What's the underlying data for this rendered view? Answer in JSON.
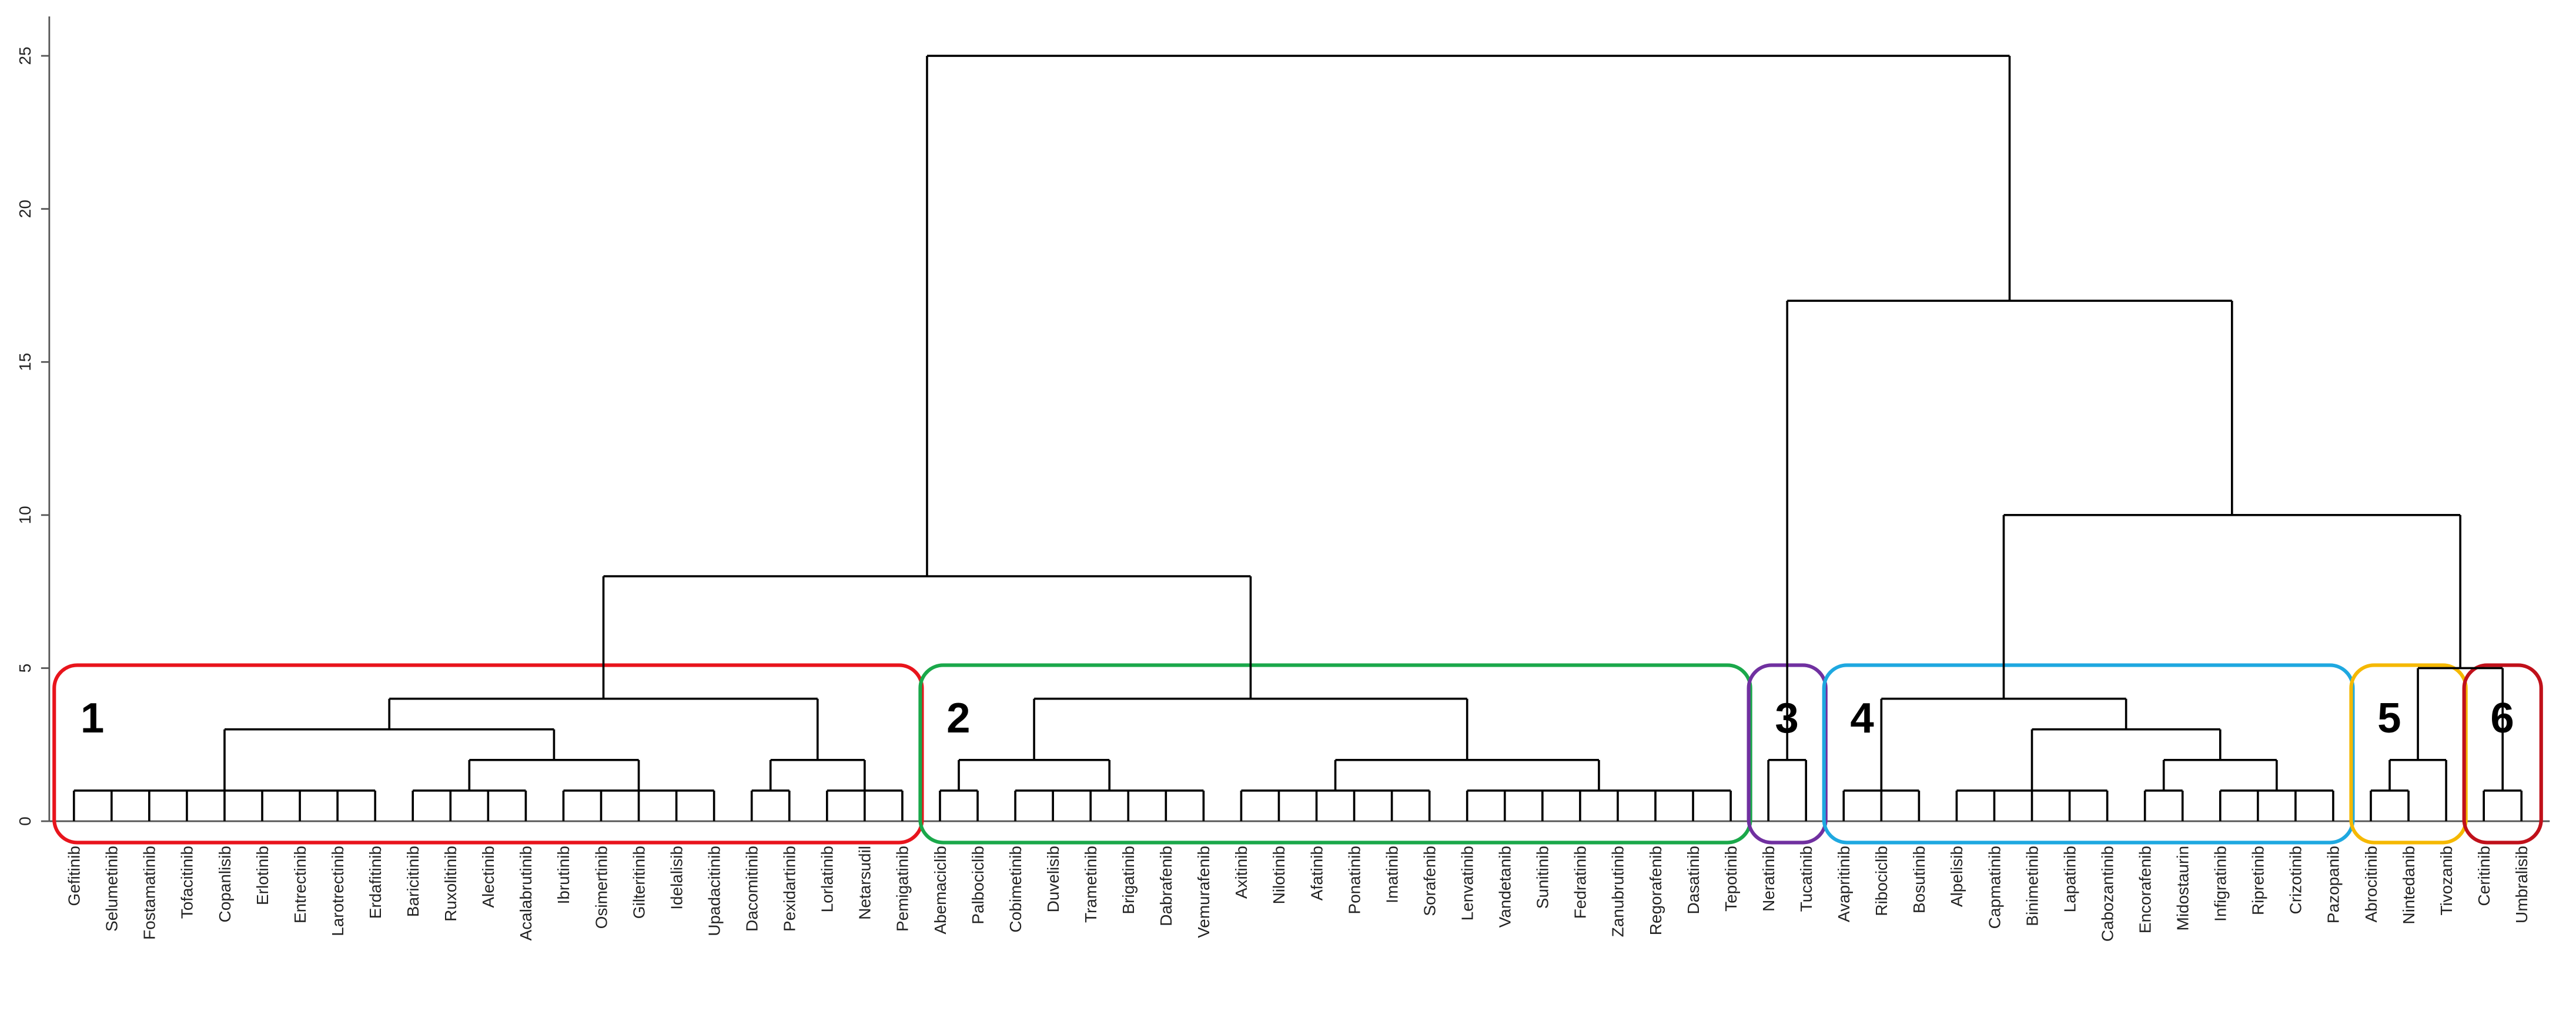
{
  "chart_data": {
    "type": "dendrogram",
    "ylim": [
      0,
      25
    ],
    "yticks": [
      0,
      5,
      10,
      15,
      20,
      25
    ],
    "line_color": "#000000",
    "leaves": [
      "Gefitinib",
      "Selumetinib",
      "Fostamatinib",
      "Tofacitinib",
      "Copanlisib",
      "Erlotinib",
      "Entrectinib",
      "Larotrectinib",
      "Erdafitinib",
      "Baricitinib",
      "Ruxolitinib",
      "Alectinib",
      "Acalabrutinib",
      "Ibrutinib",
      "Osimertinib",
      "Gilteritinib",
      "Idelalisib",
      "Upadacitinib",
      "Dacomitinib",
      "Pexidartinib",
      "Lorlatinib",
      "Netarsudil",
      "Pemigatinib",
      "Abemaciclib",
      "Palbociclib",
      "Cobimetinib",
      "Duvelisib",
      "Trametinib",
      "Brigatinib",
      "Dabrafenib",
      "Vemurafenib",
      "Axitinib",
      "Nilotinib",
      "Afatinib",
      "Ponatinib",
      "Imatinib",
      "Sorafenib",
      "Lenvatinib",
      "Vandetanib",
      "Sunitinib",
      "Fedratinib",
      "Zanubrutinib",
      "Regorafenib",
      "Dasatinib",
      "Tepotinib",
      "Neratinib",
      "Tucatinib",
      "Avapritinib",
      "Ribociclib",
      "Bosutinib",
      "Alpelisib",
      "Capmatinib",
      "Binimetinib",
      "Lapatinib",
      "Cabozantinib",
      "Encorafenib",
      "Midostaurin",
      "Infigratinib",
      "Ripretinib",
      "Crizotinib",
      "Pazopanib",
      "Abrocitinib",
      "Nintedanib",
      "Tivozanib",
      "Ceritinib",
      "Umbralisib"
    ],
    "merges": [
      {
        "children": [
          0,
          1,
          2,
          3,
          4,
          5,
          6,
          7,
          8
        ],
        "height": 1
      },
      {
        "children": [
          9,
          10,
          11,
          12
        ],
        "height": 1
      },
      {
        "children": [
          13,
          14,
          15,
          16,
          17
        ],
        "height": 1
      },
      {
        "children": [
          67,
          68
        ],
        "height": 2
      },
      {
        "children": [
          66,
          69
        ],
        "height": 3
      },
      {
        "children": [
          18,
          19
        ],
        "height": 1
      },
      {
        "children": [
          20,
          21,
          22
        ],
        "height": 1
      },
      {
        "children": [
          71,
          72
        ],
        "height": 2
      },
      {
        "children": [
          70,
          73
        ],
        "height": 4
      },
      {
        "children": [
          23,
          24
        ],
        "height": 1
      },
      {
        "children": [
          25,
          26,
          27,
          28,
          29,
          30
        ],
        "height": 1
      },
      {
        "children": [
          75,
          76
        ],
        "height": 2
      },
      {
        "children": [
          31,
          32,
          33,
          34,
          35,
          36
        ],
        "height": 1
      },
      {
        "children": [
          37,
          38,
          39,
          40,
          41,
          42,
          43,
          44
        ],
        "height": 1
      },
      {
        "children": [
          78,
          79
        ],
        "height": 2
      },
      {
        "children": [
          77,
          80
        ],
        "height": 4
      },
      {
        "children": [
          74,
          81
        ],
        "height": 8
      },
      {
        "children": [
          45,
          46
        ],
        "height": 2
      },
      {
        "children": [
          47,
          48,
          49
        ],
        "height": 1
      },
      {
        "children": [
          50,
          51,
          52,
          53,
          54
        ],
        "height": 1
      },
      {
        "children": [
          55,
          56
        ],
        "height": 1
      },
      {
        "children": [
          57,
          58,
          59,
          60
        ],
        "height": 1
      },
      {
        "children": [
          86,
          87
        ],
        "height": 2
      },
      {
        "children": [
          85,
          88
        ],
        "height": 3
      },
      {
        "children": [
          84,
          89
        ],
        "height": 4
      },
      {
        "children": [
          61,
          62
        ],
        "height": 1
      },
      {
        "children": [
          91,
          63
        ],
        "height": 2
      },
      {
        "children": [
          64,
          65
        ],
        "height": 1
      },
      {
        "children": [
          92,
          93
        ],
        "height": 5
      },
      {
        "children": [
          90,
          94
        ],
        "height": 10
      },
      {
        "children": [
          83,
          95
        ],
        "height": 17
      },
      {
        "children": [
          82,
          96
        ],
        "height": 25
      }
    ],
    "clusters": [
      {
        "label": "1",
        "color": "#e8141c",
        "leaves": [
          0,
          22
        ]
      },
      {
        "label": "2",
        "color": "#1aa84a",
        "leaves": [
          23,
          44
        ]
      },
      {
        "label": "3",
        "color": "#7030a0",
        "leaves": [
          45,
          46
        ]
      },
      {
        "label": "4",
        "color": "#1ea8e0",
        "leaves": [
          47,
          60
        ]
      },
      {
        "label": "5",
        "color": "#f5b800",
        "leaves": [
          61,
          63
        ]
      },
      {
        "label": "6",
        "color": "#c0101a",
        "leaves": [
          64,
          65
        ]
      }
    ]
  }
}
